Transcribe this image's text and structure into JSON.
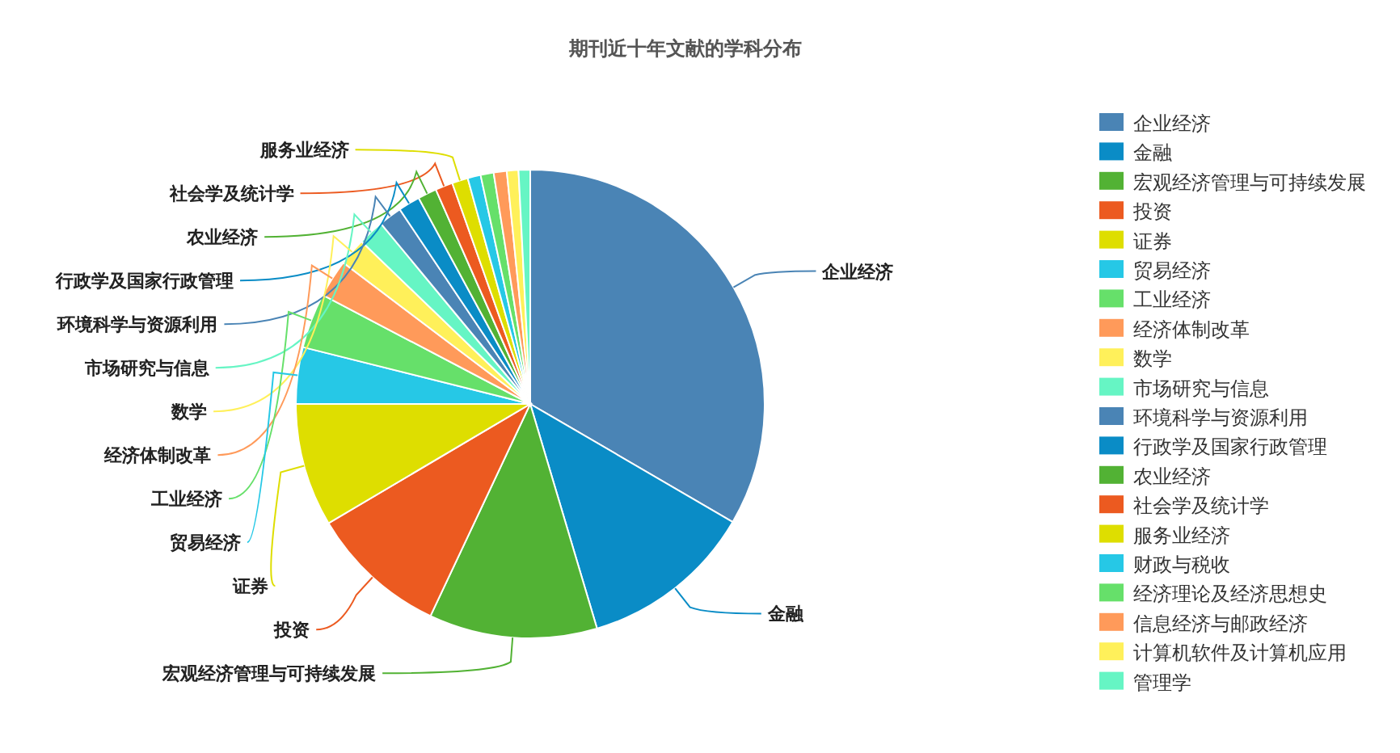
{
  "chart_data": {
    "type": "pie",
    "title": "期刊近十年文献的学科分布",
    "categories": [
      "企业经济",
      "金融",
      "宏观经济管理与可持续发展",
      "投资",
      "证券",
      "贸易经济",
      "工业经济",
      "经济体制改革",
      "数学",
      "市场研究与信息",
      "环境科学与资源利用",
      "行政学及国家行政管理",
      "农业经济",
      "社会学及统计学",
      "服务业经济",
      "财政与税收",
      "经济理论及经济思想史",
      "信息经济与邮政经济",
      "计算机软件及计算机应用",
      "管理学"
    ],
    "values": [
      33.4,
      12.0,
      11.6,
      9.5,
      8.5,
      3.9,
      3.8,
      2.6,
      1.9,
      1.8,
      1.6,
      1.5,
      1.3,
      1.2,
      1.1,
      0.9,
      0.9,
      0.9,
      0.8,
      0.8
    ],
    "colors": [
      "#4a84b5",
      "#0a8cc6",
      "#52b234",
      "#ec5a20",
      "#dede00",
      "#26c8e6",
      "#66e06a",
      "#ff9a5a",
      "#fff05a",
      "#66f5c4",
      "#4a84b5",
      "#0a8cc6",
      "#52b234",
      "#ec5a20",
      "#dede00",
      "#26c8e6",
      "#66e06a",
      "#ff9a5a",
      "#fff05a",
      "#66f5c4"
    ],
    "legend": "right"
  }
}
